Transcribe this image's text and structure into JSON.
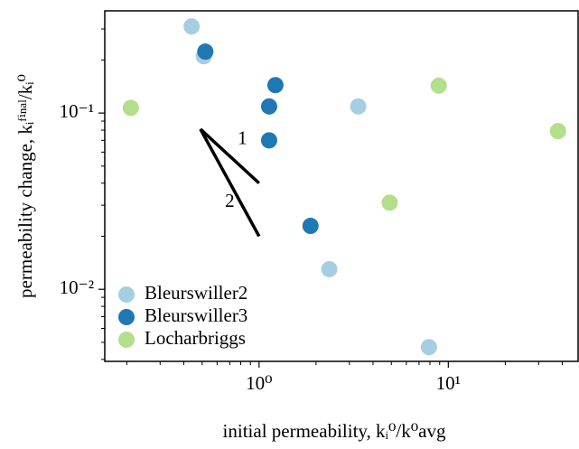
{
  "chart_data": {
    "type": "scatter",
    "xlabel": "initial permeability, kᵢ⁰/k⁰avg",
    "ylabel": "permeability change, kᵢᶠⁱⁿᵃˡ/kᵢ⁰",
    "xscale": "log",
    "yscale": "log",
    "xlim": [
      0.153,
      48.5
    ],
    "ylim": [
      0.0039,
      0.38
    ],
    "xticks": [
      {
        "value": 1,
        "label": "10⁰"
      },
      {
        "value": 10,
        "label": "10¹"
      }
    ],
    "yticks": [
      {
        "value": 0.01,
        "label": "10⁻²"
      },
      {
        "value": 0.1,
        "label": "10⁻¹"
      }
    ],
    "xminorticks": [
      0.2,
      0.3,
      0.4,
      0.5,
      0.6,
      0.7,
      0.8,
      0.9,
      2,
      3,
      4,
      5,
      6,
      7,
      8,
      9,
      20,
      30,
      40
    ],
    "yminorticks": [
      0.004,
      0.005,
      0.006,
      0.007,
      0.008,
      0.009,
      0.02,
      0.03,
      0.04,
      0.05,
      0.06,
      0.07,
      0.08,
      0.09,
      0.2,
      0.3
    ],
    "legend": "lower left",
    "series": [
      {
        "name": "Bleurswiller2",
        "color": "#a6cee3",
        "x": [
          0.44,
          0.51,
          3.34,
          2.35,
          7.9
        ],
        "values": [
          0.31,
          0.21,
          0.109,
          0.013,
          0.0047
        ]
      },
      {
        "name": "Bleurswiller3",
        "color": "#1f78b4",
        "x": [
          0.52,
          1.22,
          1.13,
          1.13,
          1.87
        ],
        "values": [
          0.223,
          0.144,
          0.109,
          0.07,
          0.0229
        ]
      },
      {
        "name": "Locharbriggs",
        "color": "#b2df8a",
        "x": [
          0.21,
          8.9,
          38,
          4.9
        ],
        "values": [
          0.107,
          0.143,
          0.079,
          0.031
        ]
      }
    ],
    "annotations": [
      {
        "label": "1",
        "x": [
          0.49,
          1.0
        ],
        "y": [
          0.081,
          0.04
        ]
      },
      {
        "label": "2",
        "x": [
          0.49,
          1.0
        ],
        "y": [
          0.081,
          0.02
        ]
      }
    ]
  }
}
